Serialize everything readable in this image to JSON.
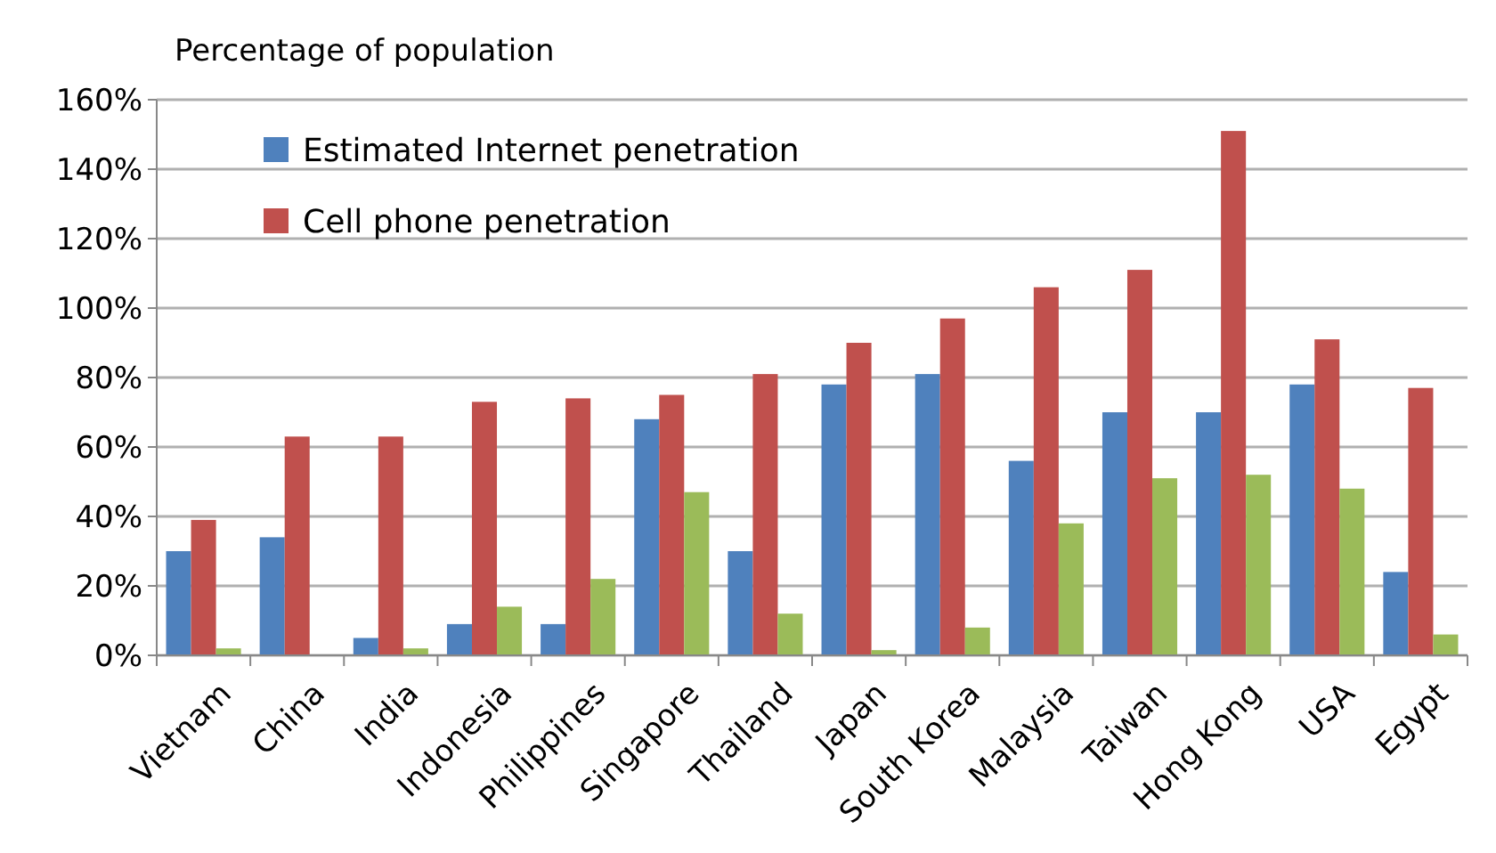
{
  "chart_data": {
    "type": "bar",
    "ylabel": "Percentage of population",
    "categories": [
      "Vietnam",
      "China",
      "India",
      "Indonesia",
      "Philippines",
      "Singapore",
      "Thailand",
      "Japan",
      "South Korea",
      "Malaysia",
      "Taiwan",
      "Hong Kong",
      "USA",
      "Egypt"
    ],
    "series": [
      {
        "name": "Estimated Internet penetration",
        "color": "#4f81bd",
        "values": [
          30,
          34,
          5,
          9,
          9,
          68,
          30,
          78,
          81,
          56,
          70,
          70,
          78,
          24
        ]
      },
      {
        "name": "Cell phone penetration",
        "color": "#c0504d",
        "values": [
          39,
          63,
          63,
          73,
          74,
          75,
          81,
          90,
          97,
          106,
          111,
          151,
          91,
          77
        ]
      },
      {
        "color": "#9bbb59",
        "values": [
          2,
          0,
          2,
          14,
          22,
          47,
          12,
          1.5,
          8,
          38,
          51,
          52,
          48,
          6
        ]
      }
    ],
    "ylim": [
      0,
      160
    ],
    "yticks": [
      {
        "value": 0,
        "label": "0%"
      },
      {
        "value": 20,
        "label": "20%"
      },
      {
        "value": 40,
        "label": "40%"
      },
      {
        "value": 60,
        "label": "60%"
      },
      {
        "value": 80,
        "label": "80%"
      },
      {
        "value": 100,
        "label": "100%"
      },
      {
        "value": 120,
        "label": "120%"
      },
      {
        "value": 140,
        "label": "140%"
      },
      {
        "value": 160,
        "label": "160%"
      }
    ],
    "grid": "y",
    "legend": "top left"
  }
}
